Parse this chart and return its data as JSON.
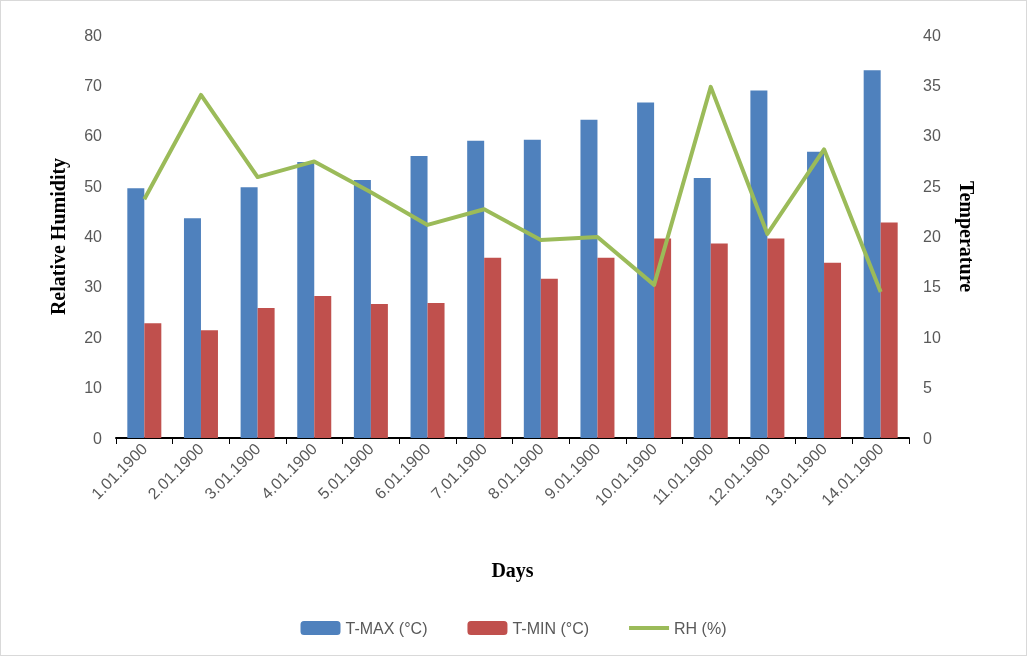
{
  "chart_data": {
    "type": "bar",
    "xlabel": "Days",
    "ylabel": "Relative Humidity",
    "y2label": "Temperature",
    "categories": [
      "1.01.1900",
      "2.01.1900",
      "3.01.1900",
      "4.01.1900",
      "5.01.1900",
      "6.01.1900",
      "7.01.1900",
      "8.01.1900",
      "9.01.1900",
      "10.01.1900",
      "11.01.1900",
      "12.01.1900",
      "13.01.1900",
      "14.01.1900"
    ],
    "series": [
      {
        "name": "T-MAX (°C)",
        "axis": "y2",
        "color": "#4f81bd",
        "values": [
          24.8,
          21.8,
          24.9,
          27.4,
          25.6,
          28.0,
          29.5,
          29.6,
          31.6,
          33.3,
          25.8,
          34.5,
          28.4,
          36.5
        ]
      },
      {
        "name": "T-MIN (°C)",
        "axis": "y2",
        "color": "#c0504d",
        "values": [
          11.4,
          10.7,
          12.9,
          14.1,
          13.3,
          13.4,
          17.9,
          15.8,
          17.9,
          19.8,
          19.3,
          19.8,
          17.4,
          21.4
        ]
      },
      {
        "name": "RH (%)",
        "type": "line",
        "axis": "y",
        "color": "#9bbb59",
        "values": [
          47.4,
          68.1,
          51.8,
          54.9,
          48.8,
          42.3,
          45.4,
          39.3,
          39.9,
          30.4,
          69.7,
          40.5,
          57.3,
          29.0
        ]
      }
    ],
    "ylim": [
      0,
      80
    ],
    "yticks": [
      0,
      10,
      20,
      30,
      40,
      50,
      60,
      70,
      80
    ],
    "y2lim": [
      0,
      40
    ],
    "y2ticks": [
      0,
      5,
      10,
      15,
      20,
      25,
      30,
      35,
      40
    ],
    "grid": false,
    "legend": "bottom",
    "marker": "none",
    "line_style": "solid"
  }
}
